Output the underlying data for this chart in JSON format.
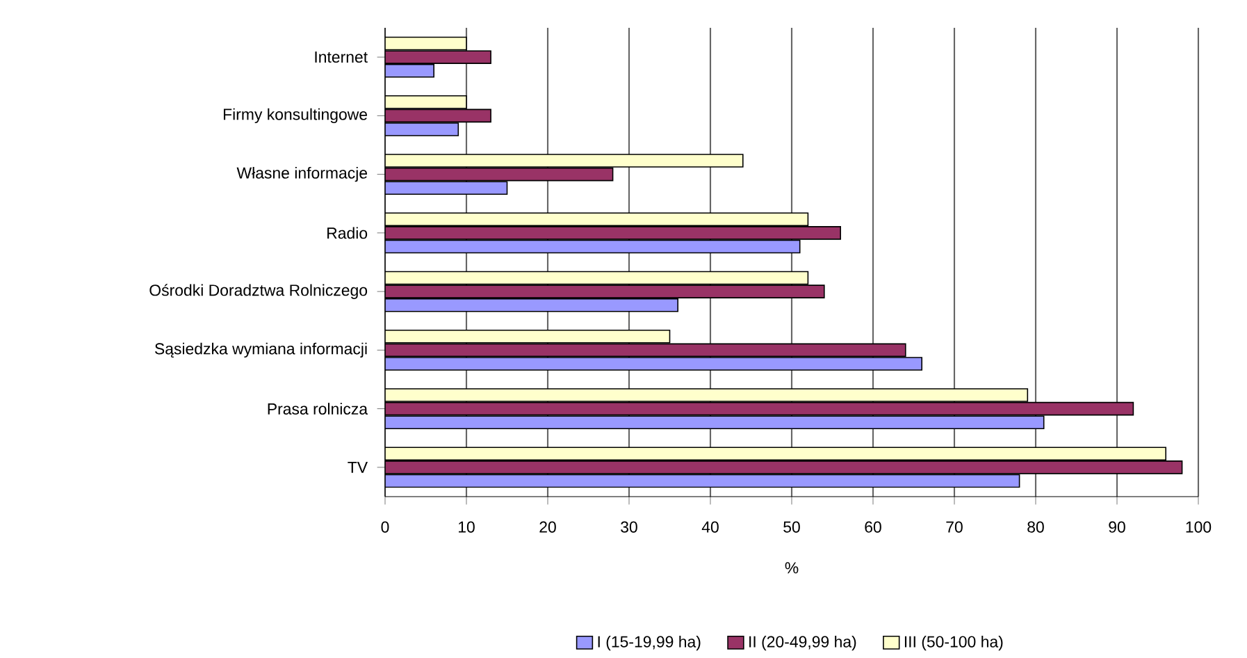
{
  "chart_data": {
    "type": "bar",
    "orientation": "horizontal",
    "xlabel": "%",
    "categories": [
      "Internet",
      "Firmy konsultingowe",
      "Własne informacje",
      "Radio",
      "Ośrodki Doradztwa Rolniczego",
      "Sąsiedzka wymiana informacji",
      "Prasa rolnicza",
      "TV"
    ],
    "series": [
      {
        "name": "I (15-19,99 ha)",
        "color": "#9999ff",
        "values": [
          6,
          9,
          15,
          51,
          36,
          66,
          81,
          78
        ]
      },
      {
        "name": "II (20-49,99 ha)",
        "color": "#993366",
        "values": [
          13,
          13,
          28,
          56,
          54,
          64,
          92,
          98
        ]
      },
      {
        "name": "III (50-100 ha)",
        "color": "#ffffcc",
        "values": [
          10,
          10,
          44,
          52,
          52,
          35,
          79,
          96
        ]
      }
    ],
    "xlim": [
      0,
      100
    ],
    "xticks": [
      0,
      10,
      20,
      30,
      40,
      50,
      60,
      70,
      80,
      90,
      100
    ],
    "grid": "x",
    "legend": "bottom"
  }
}
